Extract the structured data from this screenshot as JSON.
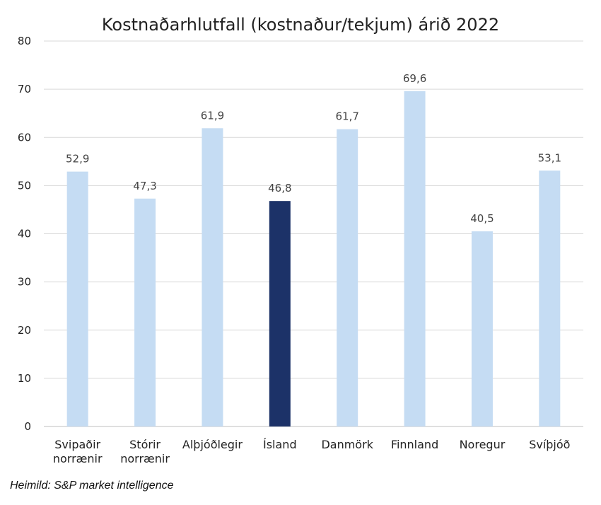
{
  "chart_data": {
    "type": "bar",
    "title": "Kostnaðarhlutfall (kostnaður/tekjum) árið 2022",
    "categories": [
      [
        "Svipaðir",
        "norrænir"
      ],
      [
        "Stórir",
        "norrænir"
      ],
      [
        "Alþjóðlegir"
      ],
      [
        "Ísland"
      ],
      [
        "Danmörk"
      ],
      [
        "Finnland"
      ],
      [
        "Noregur"
      ],
      [
        "Svíþjóð"
      ]
    ],
    "values": [
      52.9,
      47.3,
      61.9,
      46.8,
      61.7,
      69.6,
      40.5,
      53.1
    ],
    "value_labels": [
      "52,9",
      "47,3",
      "61,9",
      "46,8",
      "61,7",
      "69,6",
      "40,5",
      "53,1"
    ],
    "highlight_index": 3,
    "ylim": [
      0,
      80
    ],
    "yticks": [
      0,
      10,
      20,
      30,
      40,
      50,
      60,
      70,
      80
    ],
    "xlabel": "",
    "ylabel": "",
    "grid": true,
    "colors": {
      "bar": "#c5dcf3",
      "highlight": "#1c3268",
      "grid": "#d9d9d9",
      "axis": "#bfbfbf"
    }
  },
  "source": "Heimild: S&P market intelligence"
}
